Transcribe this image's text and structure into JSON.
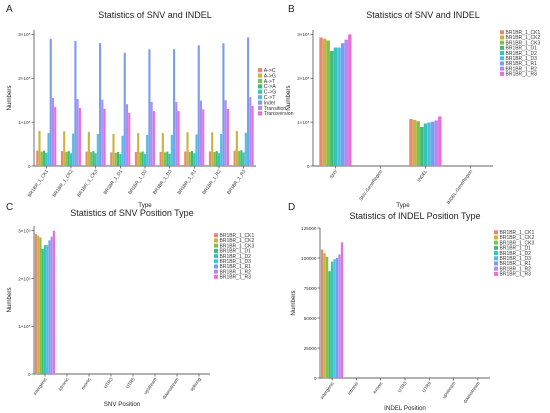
{
  "chart_data": [
    {
      "panel_label": "A",
      "type": "bar",
      "title": "Statistics of SNV and INDEL",
      "xlabel": "Type",
      "ylabel": "Numbers",
      "ylim": [
        0,
        310000
      ],
      "yticks": [
        0,
        100000,
        200000,
        300000
      ],
      "ytick_labels": [
        "0",
        "1×10⁵",
        "2×10⁵",
        "3×10⁵"
      ],
      "categories": [
        "BR1BR_1_CK1",
        "BR1BR_1_CK2",
        "BR1BR_1_CK3",
        "BR1BR_1_D1",
        "BR1BR_1_D2",
        "BR1BR_1_D3",
        "BR1BR_1_R1",
        "BR1BR_1_R2",
        "BR1BR_1_R3"
      ],
      "legend_position": "right",
      "series": [
        {
          "name": "A->C",
          "color": "#e8896b",
          "values": [
            35000,
            34000,
            33000,
            31000,
            32000,
            32000,
            33000,
            33000,
            35000
          ]
        },
        {
          "name": "A->G",
          "color": "#c9b33a",
          "values": [
            80000,
            79000,
            78000,
            73000,
            75000,
            75000,
            77000,
            77000,
            80000
          ]
        },
        {
          "name": "A->T",
          "color": "#7fc14e",
          "values": [
            33000,
            32000,
            32000,
            30000,
            31000,
            31000,
            32000,
            32000,
            34000
          ]
        },
        {
          "name": "C->A",
          "color": "#3cbc76",
          "values": [
            35000,
            34000,
            34000,
            32000,
            33000,
            33000,
            34000,
            34000,
            36000
          ]
        },
        {
          "name": "C->G",
          "color": "#36c3b8",
          "values": [
            30000,
            29000,
            29000,
            27000,
            28000,
            28000,
            29000,
            29000,
            31000
          ]
        },
        {
          "name": "C->T",
          "color": "#4dbde4",
          "values": [
            75000,
            74000,
            73000,
            69000,
            71000,
            71000,
            72000,
            73000,
            76000
          ]
        },
        {
          "name": "Indel",
          "color": "#7a9cf0",
          "values": [
            290000,
            285000,
            280000,
            258000,
            266000,
            266000,
            275000,
            280000,
            293000
          ]
        },
        {
          "name": "Transition",
          "color": "#b48af0",
          "values": [
            155000,
            153000,
            151000,
            141000,
            146000,
            146000,
            149000,
            150000,
            157000
          ]
        },
        {
          "name": "Transversion",
          "color": "#e66fd8",
          "values": [
            135000,
            132000,
            130000,
            121000,
            125000,
            125000,
            129000,
            130000,
            137000
          ]
        }
      ]
    },
    {
      "panel_label": "B",
      "type": "bar",
      "title": "Statistics of SNV and INDEL",
      "xlabel": "Type",
      "ylabel": "Numbers",
      "ylim": [
        0,
        310000
      ],
      "yticks": [
        0,
        100000,
        200000,
        300000
      ],
      "ytick_labels": [
        "0",
        "1×10⁵",
        "2×10⁵",
        "3×10⁵"
      ],
      "categories": [
        "SNV",
        "SNV-GeneRegion",
        "INDEL",
        "INDEL-GeneRegion"
      ],
      "legend_position": "right",
      "series": [
        {
          "name": "BR1BR_1_CK1",
          "color": "#e8896b",
          "values": [
            293000,
            0,
            107000,
            0
          ]
        },
        {
          "name": "BR1BR_1_CK2",
          "color": "#c9b33a",
          "values": [
            290000,
            0,
            105000,
            0
          ]
        },
        {
          "name": "BR1BR_1_CK3",
          "color": "#7fc14e",
          "values": [
            286000,
            0,
            102000,
            0
          ]
        },
        {
          "name": "BR1BR_1_D1",
          "color": "#3cbc76",
          "values": [
            262000,
            0,
            89000,
            0
          ]
        },
        {
          "name": "BR1BR_1_D2",
          "color": "#36c3b8",
          "values": [
            270000,
            0,
            97000,
            0
          ]
        },
        {
          "name": "BR1BR_1_D3",
          "color": "#4dbde4",
          "values": [
            270000,
            0,
            99000,
            0
          ]
        },
        {
          "name": "BR1BR_1_R1",
          "color": "#7a9cf0",
          "values": [
            280000,
            0,
            101000,
            0
          ]
        },
        {
          "name": "BR1BR_1_R2",
          "color": "#b48af0",
          "values": [
            288000,
            0,
            104000,
            0
          ]
        },
        {
          "name": "BR1BR_1_R3",
          "color": "#e66fd8",
          "values": [
            300000,
            0,
            113000,
            0
          ]
        }
      ]
    },
    {
      "panel_label": "C",
      "type": "bar",
      "title": "Statistics of SNV Position Type",
      "xlabel": "SNV Position",
      "ylabel": "Numbers",
      "ylim": [
        0,
        310000
      ],
      "yticks": [
        0,
        100000,
        200000,
        300000
      ],
      "ytick_labels": [
        "0",
        "1×10⁵",
        "2×10⁵",
        "3×10⁵"
      ],
      "categories": [
        "intergenic",
        "intronic",
        "exonic",
        "UTR3",
        "UTR5",
        "upstream",
        "downstream",
        "splicing"
      ],
      "legend_position": "right",
      "series": [
        {
          "name": "BR1BR_1_CK1",
          "color": "#e8896b",
          "values": [
            293000,
            0,
            0,
            0,
            0,
            0,
            0,
            0
          ]
        },
        {
          "name": "BR1BR_1_CK2",
          "color": "#c9b33a",
          "values": [
            290000,
            0,
            0,
            0,
            0,
            0,
            0,
            0
          ]
        },
        {
          "name": "BR1BR_1_CK3",
          "color": "#7fc14e",
          "values": [
            286000,
            0,
            0,
            0,
            0,
            0,
            0,
            0
          ]
        },
        {
          "name": "BR1BR_1_D1",
          "color": "#3cbc76",
          "values": [
            262000,
            0,
            0,
            0,
            0,
            0,
            0,
            0
          ]
        },
        {
          "name": "BR1BR_1_D2",
          "color": "#36c3b8",
          "values": [
            270000,
            0,
            0,
            0,
            0,
            0,
            0,
            0
          ]
        },
        {
          "name": "BR1BR_1_D3",
          "color": "#4dbde4",
          "values": [
            270000,
            0,
            0,
            0,
            0,
            0,
            0,
            0
          ]
        },
        {
          "name": "BR1BR_1_R1",
          "color": "#7a9cf0",
          "values": [
            280000,
            0,
            0,
            0,
            0,
            0,
            0,
            0
          ]
        },
        {
          "name": "BR1BR_1_R2",
          "color": "#b48af0",
          "values": [
            288000,
            0,
            0,
            0,
            0,
            0,
            0,
            0
          ]
        },
        {
          "name": "BR1BR_1_R3",
          "color": "#e66fd8",
          "values": [
            300000,
            0,
            0,
            0,
            0,
            0,
            0,
            0
          ]
        }
      ]
    },
    {
      "panel_label": "D",
      "type": "bar",
      "title": "Statistics of INDEL Position Type",
      "xlabel": "INDEL Position",
      "ylabel": "Numbers",
      "ylim": [
        0,
        125000
      ],
      "yticks": [
        0,
        25000,
        50000,
        75000,
        100000,
        125000
      ],
      "ytick_labels": [
        "0",
        "25000",
        "50000",
        "75000",
        "100000",
        "125000"
      ],
      "categories": [
        "intergenic",
        "intronic",
        "exonic",
        "UTR3",
        "UTR5",
        "upstream",
        "downstream"
      ],
      "legend_position": "right",
      "series": [
        {
          "name": "BR1BR_1_CK1",
          "color": "#e8896b",
          "values": [
            107000,
            0,
            0,
            0,
            0,
            0,
            0
          ]
        },
        {
          "name": "BR1BR_1_CK2",
          "color": "#c9b33a",
          "values": [
            104000,
            0,
            0,
            0,
            0,
            0,
            0
          ]
        },
        {
          "name": "BR1BR_1_CK3",
          "color": "#7fc14e",
          "values": [
            101000,
            0,
            0,
            0,
            0,
            0,
            0
          ]
        },
        {
          "name": "BR1BR_1_D1",
          "color": "#3cbc76",
          "values": [
            89000,
            0,
            0,
            0,
            0,
            0,
            0
          ]
        },
        {
          "name": "BR1BR_1_D2",
          "color": "#36c3b8",
          "values": [
            97000,
            0,
            0,
            0,
            0,
            0,
            0
          ]
        },
        {
          "name": "BR1BR_1_D3",
          "color": "#4dbde4",
          "values": [
            99000,
            0,
            0,
            0,
            0,
            0,
            0
          ]
        },
        {
          "name": "BR1BR_1_R1",
          "color": "#7a9cf0",
          "values": [
            100000,
            0,
            0,
            0,
            0,
            0,
            0
          ]
        },
        {
          "name": "BR1BR_1_R2",
          "color": "#b48af0",
          "values": [
            103000,
            0,
            0,
            0,
            0,
            0,
            0
          ]
        },
        {
          "name": "BR1BR_1_R3",
          "color": "#e66fd8",
          "values": [
            113000,
            0,
            0,
            0,
            0,
            0,
            0
          ]
        }
      ]
    }
  ]
}
